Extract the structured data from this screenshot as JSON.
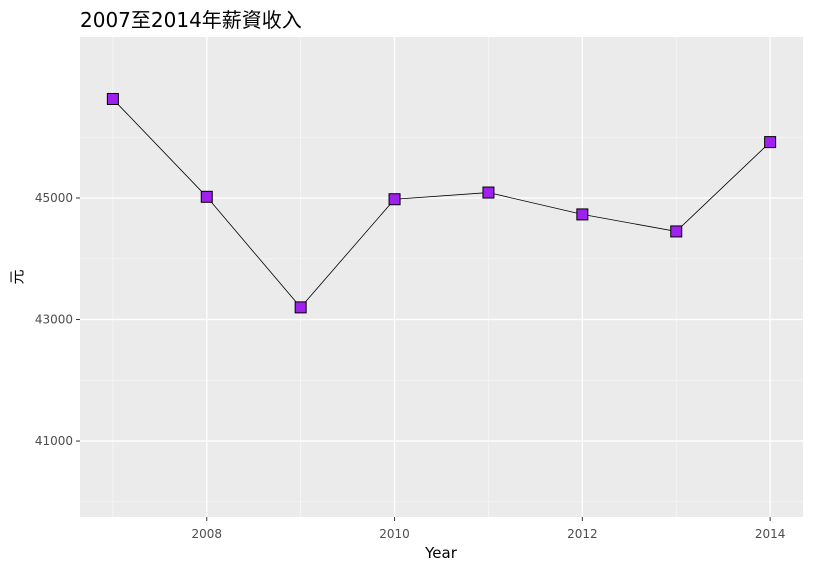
{
  "chart_data": {
    "type": "line",
    "title": "2007至2014年薪資收入",
    "xlabel": "Year",
    "ylabel": "元",
    "x": [
      2007,
      2008,
      2009,
      2010,
      2011,
      2012,
      2013,
      2014
    ],
    "series": [
      {
        "values": [
          46630,
          45020,
          43200,
          44980,
          45090,
          44730,
          44450,
          45920
        ]
      }
    ],
    "xlim": [
      2006.65,
      2014.35
    ],
    "ylim": [
      39750,
      47650
    ],
    "x_ticks": [
      2008,
      2010,
      2012,
      2014
    ],
    "y_ticks": [
      41000,
      43000,
      45000
    ],
    "x_tick_labels": [
      "2008",
      "2010",
      "2012",
      "2014"
    ],
    "y_tick_labels": [
      "41000",
      "43000",
      "45000"
    ],
    "grid": true,
    "colors": {
      "panel_bg": "#ebebeb",
      "grid_major": "#ffffff",
      "grid_minor": "#f7f7f7",
      "line": "#000000",
      "point_fill": "#a020f0",
      "point_stroke": "#000000"
    }
  }
}
